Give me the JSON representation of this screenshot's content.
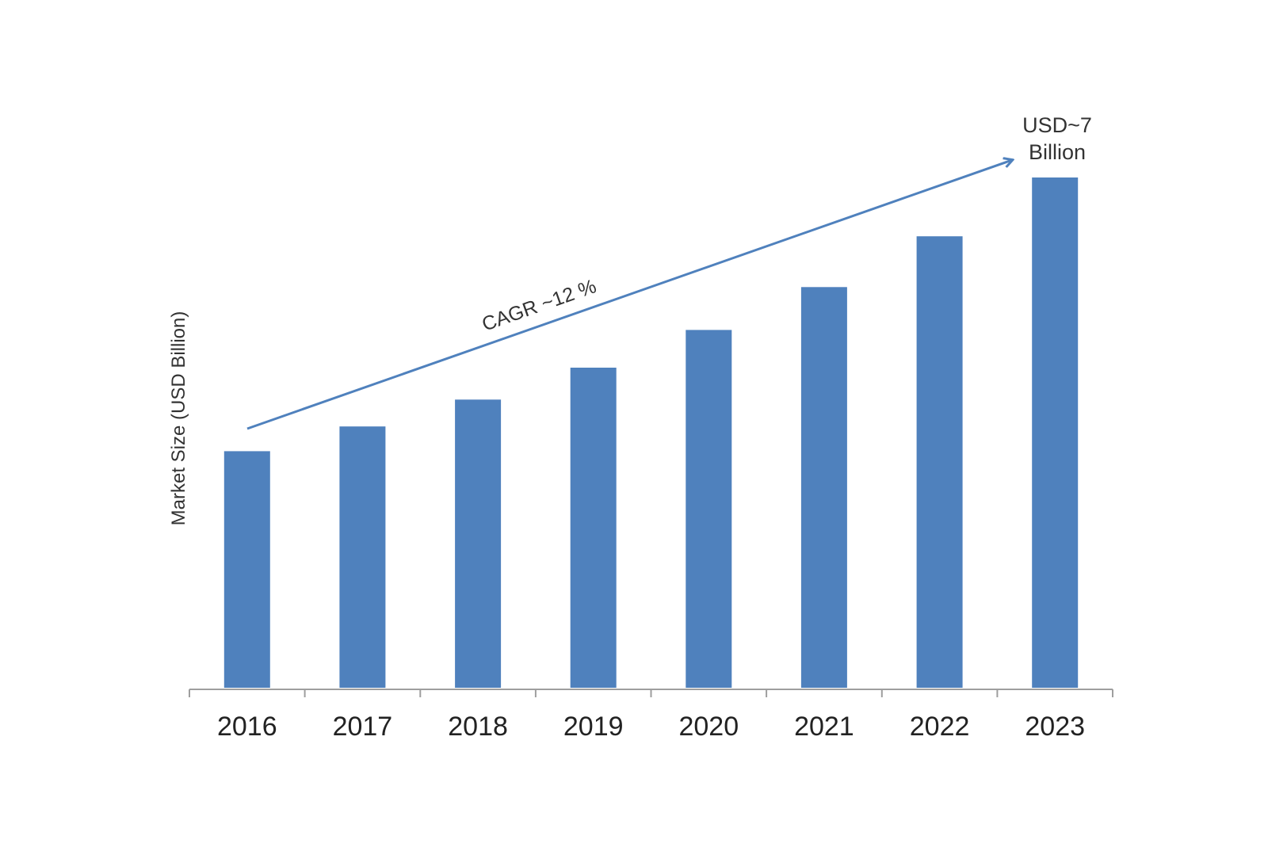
{
  "chart_data": {
    "type": "bar",
    "categories": [
      "2016",
      "2017",
      "2018",
      "2019",
      "2020",
      "2021",
      "2022",
      "2023"
    ],
    "values": [
      3.26,
      3.6,
      3.97,
      4.41,
      4.93,
      5.52,
      6.22,
      7.03
    ],
    "title": "",
    "xlabel": "",
    "ylabel": "Market Size (USD Billion)",
    "ylim": [
      0,
      7.2
    ],
    "grid": false,
    "legend": "none",
    "bar_color": "#4f81bd",
    "arrow_color": "#4f81bd",
    "annotations": {
      "cagr": "CAGR ~12 %",
      "end_value_line1": "USD~7",
      "end_value_line2": "Billion"
    }
  }
}
